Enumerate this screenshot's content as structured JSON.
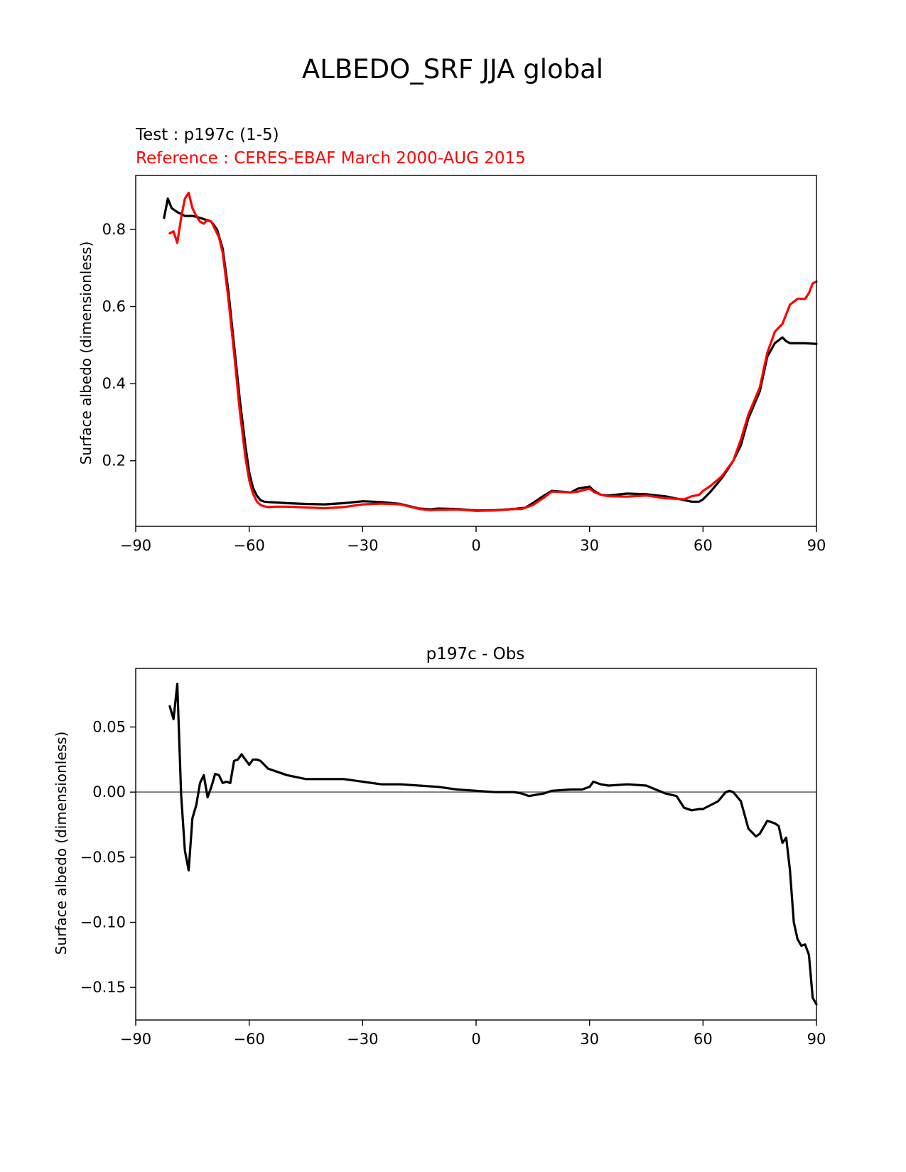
{
  "figure": {
    "title": "ALBEDO_SRF JJA global"
  },
  "chart_data": [
    {
      "type": "line",
      "subtitle_lines": [
        {
          "text": "Test : p197c (1-5)",
          "color": "#000000"
        },
        {
          "text": "Reference : CERES-EBAF March 2000-AUG 2015",
          "color": "#ff0000"
        }
      ],
      "title": "",
      "xlabel": "",
      "ylabel": "Surface albedo (dimensionless)",
      "xlim": [
        -90,
        90
      ],
      "ylim": [
        0.03,
        0.94
      ],
      "xticks": [
        -90,
        -60,
        -30,
        0,
        30,
        60,
        90
      ],
      "xtick_labels": [
        "−90",
        "−60",
        "−30",
        "0",
        "30",
        "60",
        "90"
      ],
      "yticks": [
        0.2,
        0.4,
        0.6,
        0.8
      ],
      "ytick_labels": [
        "0.2",
        "0.4",
        "0.6",
        "0.8"
      ],
      "grid": false,
      "series": [
        {
          "name": "Test",
          "color": "#000000",
          "x": [
            -82.5,
            -81.5,
            -80.5,
            -79,
            -77,
            -75,
            -73,
            -71.5,
            -70,
            -68.5,
            -67,
            -65.5,
            -64,
            -62.5,
            -61,
            -60,
            -59,
            -58,
            -57,
            -56,
            -55,
            -53,
            -50,
            -45,
            -40,
            -35,
            -30,
            -25,
            -20,
            -15,
            -12,
            -10,
            -5,
            0,
            5,
            10,
            13,
            15,
            18,
            20,
            25,
            27,
            30,
            31,
            33,
            35,
            40,
            45,
            50,
            55,
            57,
            59,
            60,
            62,
            65,
            68,
            70,
            72,
            75,
            77,
            79,
            81,
            82,
            83,
            85,
            87,
            90
          ],
          "y": [
            0.83,
            0.88,
            0.855,
            0.845,
            0.835,
            0.835,
            0.83,
            0.825,
            0.82,
            0.8,
            0.75,
            0.64,
            0.5,
            0.36,
            0.24,
            0.17,
            0.13,
            0.11,
            0.098,
            0.094,
            0.093,
            0.092,
            0.09,
            0.088,
            0.087,
            0.09,
            0.095,
            0.093,
            0.088,
            0.076,
            0.074,
            0.076,
            0.075,
            0.071,
            0.072,
            0.075,
            0.078,
            0.09,
            0.11,
            0.122,
            0.118,
            0.128,
            0.133,
            0.123,
            0.112,
            0.11,
            0.115,
            0.113,
            0.108,
            0.098,
            0.094,
            0.094,
            0.1,
            0.12,
            0.155,
            0.2,
            0.24,
            0.31,
            0.38,
            0.47,
            0.505,
            0.52,
            0.51,
            0.505,
            0.505,
            0.505,
            0.503
          ]
        },
        {
          "name": "Reference",
          "color": "#ff0000",
          "x": [
            -81,
            -80,
            -79,
            -78,
            -77,
            -76,
            -75,
            -74,
            -73,
            -72,
            -71,
            -70,
            -69,
            -68,
            -67,
            -65.5,
            -64,
            -62.5,
            -61,
            -60,
            -59,
            -58,
            -57,
            -56,
            -55,
            -53,
            -50,
            -45,
            -40,
            -35,
            -30,
            -25,
            -20,
            -15,
            -12,
            -10,
            -5,
            0,
            5,
            10,
            12,
            15,
            18,
            20,
            25,
            27,
            30,
            31,
            33,
            35,
            40,
            45,
            50,
            55,
            57,
            59,
            60,
            62,
            65,
            68,
            70,
            72,
            75,
            77,
            79,
            81,
            82,
            83,
            85,
            87,
            88,
            89,
            90
          ],
          "y": [
            0.79,
            0.795,
            0.765,
            0.83,
            0.88,
            0.895,
            0.855,
            0.835,
            0.82,
            0.815,
            0.825,
            0.82,
            0.8,
            0.78,
            0.74,
            0.62,
            0.48,
            0.33,
            0.21,
            0.15,
            0.115,
            0.095,
            0.085,
            0.082,
            0.08,
            0.081,
            0.081,
            0.079,
            0.077,
            0.08,
            0.087,
            0.089,
            0.087,
            0.075,
            0.072,
            0.073,
            0.074,
            0.07,
            0.071,
            0.075,
            0.075,
            0.085,
            0.105,
            0.12,
            0.118,
            0.12,
            0.128,
            0.12,
            0.112,
            0.108,
            0.107,
            0.11,
            0.103,
            0.1,
            0.108,
            0.112,
            0.122,
            0.135,
            0.16,
            0.2,
            0.255,
            0.32,
            0.39,
            0.48,
            0.535,
            0.555,
            0.58,
            0.605,
            0.62,
            0.62,
            0.635,
            0.66,
            0.665
          ]
        }
      ]
    },
    {
      "type": "line",
      "title": "p197c - Obs",
      "xlabel": "",
      "ylabel": "Surface albedo (dimensionless)",
      "xlim": [
        -90,
        90
      ],
      "ylim": [
        -0.175,
        0.095
      ],
      "xticks": [
        -90,
        -60,
        -30,
        0,
        30,
        60,
        90
      ],
      "xtick_labels": [
        "−90",
        "−60",
        "−30",
        "0",
        "30",
        "60",
        "90"
      ],
      "yticks": [
        0.05,
        0.0,
        -0.05,
        -0.1,
        -0.15
      ],
      "ytick_labels": [
        "0.05",
        "0.00",
        "−0.05",
        "−0.10",
        "−0.15"
      ],
      "grid": false,
      "zero_line": {
        "y": 0,
        "color": "#808080"
      },
      "series": [
        {
          "name": "",
          "color": "#000000",
          "x": [
            -81,
            -80,
            -79,
            -78,
            -77,
            -76,
            -75,
            -74,
            -73,
            -72,
            -71,
            -70,
            -69,
            -68,
            -67,
            -66,
            -65,
            -64,
            -63,
            -62,
            -61,
            -60,
            -59,
            -58,
            -57,
            -56,
            -55,
            -53,
            -50,
            -45,
            -40,
            -35,
            -30,
            -25,
            -20,
            -15,
            -10,
            -5,
            0,
            5,
            10,
            12,
            14,
            16,
            18,
            20,
            25,
            27,
            28,
            30,
            31,
            33,
            35,
            40,
            45,
            50,
            53,
            55,
            57,
            59,
            60,
            62,
            64,
            66,
            67,
            68,
            70,
            72,
            73,
            74,
            75,
            77,
            79,
            80,
            81,
            82,
            83,
            84,
            85,
            86,
            87,
            88,
            89,
            90
          ],
          "y": [
            0.066,
            0.056,
            0.083,
            -0.002,
            -0.045,
            -0.06,
            -0.02,
            -0.01,
            0.007,
            0.013,
            -0.004,
            0.004,
            0.014,
            0.013,
            0.007,
            0.008,
            0.007,
            0.024,
            0.025,
            0.029,
            0.025,
            0.021,
            0.025,
            0.025,
            0.024,
            0.021,
            0.018,
            0.016,
            0.013,
            0.01,
            0.01,
            0.01,
            0.008,
            0.006,
            0.006,
            0.005,
            0.004,
            0.002,
            0.001,
            0.0,
            0.0,
            -0.001,
            -0.003,
            -0.002,
            -0.001,
            0.001,
            0.002,
            0.002,
            0.002,
            0.004,
            0.008,
            0.006,
            0.005,
            0.006,
            0.005,
            -0.001,
            -0.003,
            -0.012,
            -0.014,
            -0.013,
            -0.013,
            -0.01,
            -0.007,
            0.0,
            0.001,
            0.0,
            -0.007,
            -0.028,
            -0.031,
            -0.034,
            -0.032,
            -0.022,
            -0.024,
            -0.026,
            -0.039,
            -0.035,
            -0.06,
            -0.1,
            -0.113,
            -0.118,
            -0.117,
            -0.125,
            -0.158,
            -0.163
          ]
        }
      ]
    }
  ]
}
